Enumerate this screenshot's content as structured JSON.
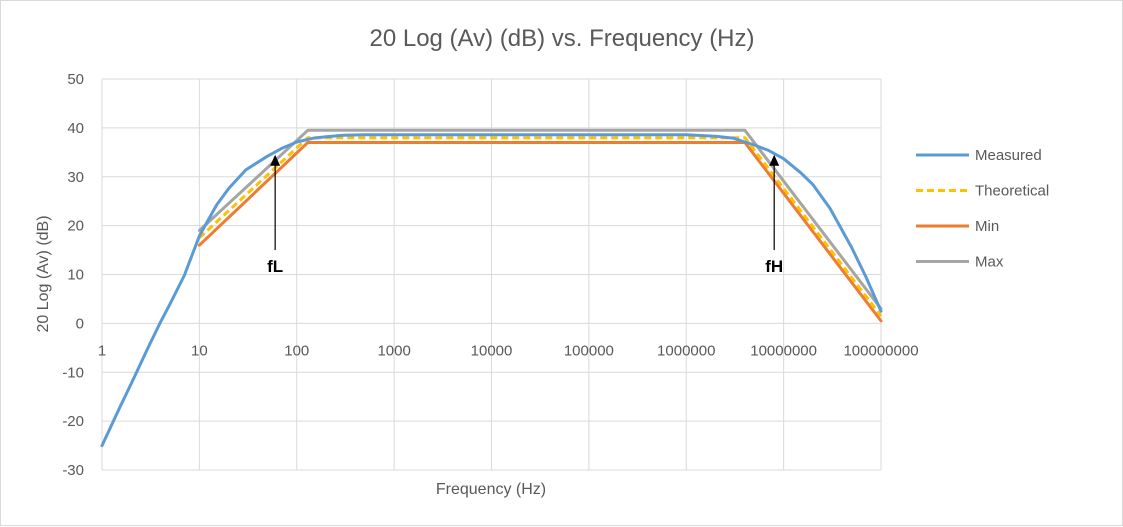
{
  "chart_data": {
    "type": "line",
    "title": "20 Log (Av) (dB) vs. Frequency (Hz)",
    "xlabel": "Frequency (Hz)",
    "ylabel": "20 Log (Av) (dB)",
    "x_scale": "log",
    "xlim": [
      1,
      100000000
    ],
    "ylim": [
      -30,
      50
    ],
    "x_tick_labels": [
      "1",
      "10",
      "100",
      "1000",
      "10000",
      "100000",
      "1000000",
      "10000000",
      "100000000"
    ],
    "y_tick_labels": [
      "50",
      "40",
      "30",
      "20",
      "10",
      "0",
      "-10",
      "-20",
      "-30"
    ],
    "grid": true,
    "legend_position": "right",
    "series": [
      {
        "name": "Measured",
        "color": "#5b9bd5",
        "style": "solid",
        "x": [
          1,
          1.5,
          2,
          3,
          4,
          5,
          7,
          10,
          15,
          20,
          30,
          50,
          70,
          100,
          150,
          200,
          300,
          500,
          1000,
          10000,
          100000,
          1000000,
          2000000,
          3000000,
          5000000,
          7000000,
          10000000,
          15000000,
          20000000,
          30000000,
          50000000,
          70000000,
          100000000
        ],
        "y": [
          -25,
          -17.5,
          -12.3,
          -4.8,
          0.3,
          4,
          9.8,
          17.9,
          24.2,
          27.6,
          31.4,
          34.2,
          35.8,
          37.1,
          37.9,
          38.2,
          38.5,
          38.6,
          38.6,
          38.6,
          38.6,
          38.6,
          38.3,
          37.9,
          36.5,
          35.4,
          33.7,
          30.8,
          28.4,
          23.5,
          15.5,
          9.5,
          2.5
        ]
      },
      {
        "name": "Theoretical",
        "color": "#ffc000",
        "style": "dashed",
        "x": [
          10,
          130,
          4000000,
          100000000
        ],
        "y": [
          17.5,
          38,
          38,
          1.5
        ]
      },
      {
        "name": "Min",
        "color": "#ed7d31",
        "style": "solid",
        "x": [
          10,
          130,
          4000000,
          100000000
        ],
        "y": [
          16,
          37,
          37,
          0.5
        ]
      },
      {
        "name": "Max",
        "color": "#a5a5a5",
        "style": "solid",
        "x": [
          10,
          130,
          4000000,
          100000000
        ],
        "y": [
          19,
          39.5,
          39.5,
          3
        ]
      }
    ],
    "annotations": [
      {
        "text": "fL",
        "x": 60,
        "arrow_from_y": 15,
        "arrow_to_y": 34.5
      },
      {
        "text": "fH",
        "x": 8000000,
        "arrow_from_y": 15,
        "arrow_to_y": 34.5
      }
    ]
  }
}
